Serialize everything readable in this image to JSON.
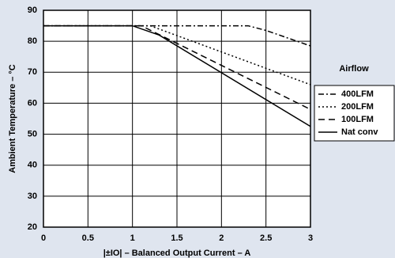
{
  "chart_data": {
    "type": "line",
    "xlabel": "|±IO| – Balanced Output Current – A",
    "ylabel": "Ambient Temperature – °C",
    "legend_title": "Airflow",
    "xlim": [
      0,
      3
    ],
    "xticks": [
      0,
      0.5,
      1,
      1.5,
      2,
      2.5,
      3
    ],
    "ylim": [
      20,
      90
    ],
    "yticks": [
      20,
      30,
      40,
      50,
      60,
      70,
      80,
      90
    ],
    "grid": true,
    "series": [
      {
        "name": "400LFM",
        "color": "#000000",
        "dash": "7,3,2,3",
        "x": [
          0,
          2.3,
          2.5,
          2.75,
          3
        ],
        "values": [
          85,
          85,
          83.5,
          81,
          78.5
        ]
      },
      {
        "name": "200LFM",
        "color": "#000000",
        "dash": "2,3",
        "x": [
          0,
          1.2,
          3
        ],
        "values": [
          85,
          85,
          66
        ]
      },
      {
        "name": "100LFM",
        "color": "#000000",
        "dash": "8,5",
        "x": [
          0,
          1.1,
          3
        ],
        "values": [
          85,
          85,
          58
        ]
      },
      {
        "name": "Nat conv",
        "color": "#000000",
        "dash": "",
        "x": [
          0,
          1,
          1.3,
          3
        ],
        "values": [
          85,
          85,
          82,
          52.5
        ]
      }
    ]
  }
}
